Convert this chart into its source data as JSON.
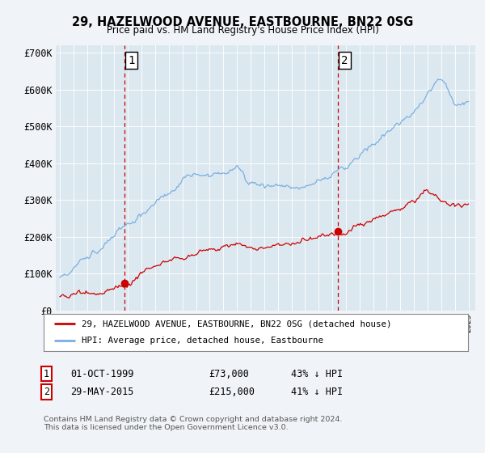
{
  "title": "29, HAZELWOOD AVENUE, EASTBOURNE, BN22 0SG",
  "subtitle": "Price paid vs. HM Land Registry's House Price Index (HPI)",
  "background_color": "#f0f4f8",
  "plot_bg_color": "#dce8f0",
  "ylim": [
    0,
    720000
  ],
  "yticks": [
    0,
    100000,
    200000,
    300000,
    400000,
    500000,
    600000,
    700000
  ],
  "ytick_labels": [
    "£0",
    "£100K",
    "£200K",
    "£300K",
    "£400K",
    "£500K",
    "£600K",
    "£700K"
  ],
  "legend_entry1": "29, HAZELWOOD AVENUE, EASTBOURNE, BN22 0SG (detached house)",
  "legend_entry2": "HPI: Average price, detached house, Eastbourne",
  "note1_num": "1",
  "note1_date": "01-OCT-1999",
  "note1_price": "£73,000",
  "note1_hpi": "43% ↓ HPI",
  "note2_num": "2",
  "note2_date": "29-MAY-2015",
  "note2_price": "£215,000",
  "note2_hpi": "41% ↓ HPI",
  "footnote": "Contains HM Land Registry data © Crown copyright and database right 2024.\nThis data is licensed under the Open Government Licence v3.0.",
  "sale1_x": 1999.75,
  "sale1_y": 73000,
  "sale2_x": 2015.41,
  "sale2_y": 215000,
  "vline1_x": 1999.75,
  "vline2_x": 2015.41,
  "red_color": "#cc0000",
  "blue_color": "#7aafe0",
  "vline_color": "#cc0000",
  "xlim_left": 1994.7,
  "xlim_right": 2025.5
}
